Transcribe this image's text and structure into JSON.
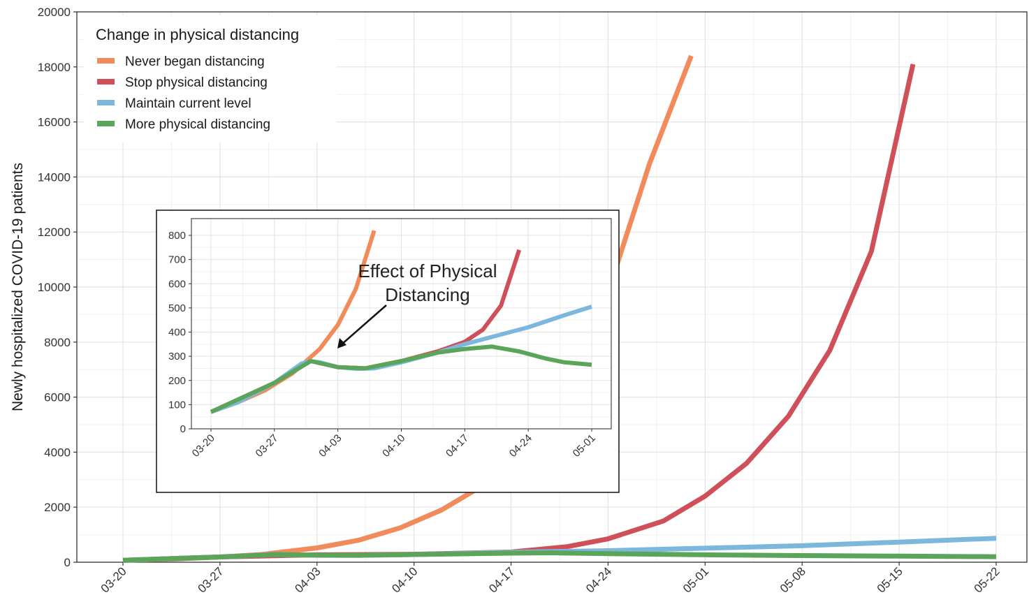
{
  "chart_data": [
    {
      "type": "line",
      "title": "",
      "xlabel": "",
      "ylabel": "Newly hospitalized COVID-19 patients",
      "x_ticks": [
        "03-20",
        "03-27",
        "04-03",
        "04-10",
        "04-17",
        "04-24",
        "05-01",
        "05-08",
        "05-15",
        "05-22"
      ],
      "y_ticks": [
        "0",
        "2000",
        "4000",
        "6000",
        "8000",
        "10000",
        "12000",
        "14000",
        "16000",
        "18000",
        "20000"
      ],
      "ylim": [
        0,
        20000
      ],
      "grid": true,
      "legend": {
        "title": "Change in physical distancing",
        "placement": "top-left"
      },
      "series": [
        {
          "name": "Never began distancing",
          "color": "#F28B5B",
          "points": [
            [
              "03-20",
              70
            ],
            [
              "03-24",
              120
            ],
            [
              "03-27",
              190
            ],
            [
              "03-30",
              280
            ],
            [
              "04-03",
              520
            ],
            [
              "04-06",
              800
            ],
            [
              "04-09",
              1250
            ],
            [
              "04-12",
              1900
            ],
            [
              "04-15",
              2800
            ],
            [
              "04-18",
              4200
            ],
            [
              "04-21",
              6500
            ],
            [
              "04-24",
              9800
            ],
            [
              "04-27",
              14500
            ],
            [
              "04-30",
              18400
            ]
          ]
        },
        {
          "name": "Stop physical distancing",
          "color": "#D0505A",
          "points": [
            [
              "03-20",
              70
            ],
            [
              "03-27",
              190
            ],
            [
              "04-03",
              270
            ],
            [
              "04-10",
              290
            ],
            [
              "04-17",
              370
            ],
            [
              "04-21",
              560
            ],
            [
              "04-24",
              850
            ],
            [
              "04-28",
              1500
            ],
            [
              "05-01",
              2400
            ],
            [
              "05-04",
              3600
            ],
            [
              "05-07",
              5300
            ],
            [
              "05-10",
              7700
            ],
            [
              "05-13",
              11300
            ],
            [
              "05-16",
              18100
            ]
          ]
        },
        {
          "name": "Maintain current level",
          "color": "#7CB8DE",
          "points": [
            [
              "03-20",
              70
            ],
            [
              "03-27",
              190
            ],
            [
              "03-31",
              280
            ],
            [
              "04-03",
              255
            ],
            [
              "04-06",
              250
            ],
            [
              "04-10",
              280
            ],
            [
              "04-17",
              360
            ],
            [
              "04-24",
              420
            ],
            [
              "05-01",
              510
            ],
            [
              "05-08",
              600
            ],
            [
              "05-15",
              730
            ],
            [
              "05-22",
              870
            ]
          ]
        },
        {
          "name": "More physical distancing",
          "color": "#5BA55B",
          "points": [
            [
              "03-20",
              70
            ],
            [
              "03-27",
              190
            ],
            [
              "03-31",
              280
            ],
            [
              "04-03",
              255
            ],
            [
              "04-06",
              250
            ],
            [
              "04-10",
              280
            ],
            [
              "04-17",
              330
            ],
            [
              "04-20",
              340
            ],
            [
              "04-24",
              310
            ],
            [
              "05-01",
              270
            ],
            [
              "05-08",
              240
            ],
            [
              "05-15",
              220
            ],
            [
              "05-22",
              200
            ]
          ]
        }
      ]
    },
    {
      "type": "line",
      "title": "",
      "xlabel": "",
      "ylabel": "",
      "x_ticks": [
        "03-20",
        "03-27",
        "04-03",
        "04-10",
        "04-17",
        "04-24",
        "05-01"
      ],
      "y_ticks": [
        "0",
        "100",
        "200",
        "300",
        "400",
        "500",
        "600",
        "700",
        "800"
      ],
      "ylim": [
        0,
        800
      ],
      "grid": true,
      "annotation": {
        "text_line1": "Effect of Physical",
        "text_line2": "Distancing"
      },
      "series": [
        {
          "color": "#F28B5B",
          "points": [
            [
              "03-20",
              70
            ],
            [
              "03-23",
              110
            ],
            [
              "03-26",
              160
            ],
            [
              "03-29",
              230
            ],
            [
              "04-01",
              330
            ],
            [
              "04-03",
              430
            ],
            [
              "04-05",
              580
            ],
            [
              "04-07",
              820
            ]
          ]
        },
        {
          "color": "#D0505A",
          "points": [
            [
              "03-20",
              70
            ],
            [
              "03-27",
              190
            ],
            [
              "03-31",
              280
            ],
            [
              "04-03",
              255
            ],
            [
              "04-06",
              250
            ],
            [
              "04-10",
              280
            ],
            [
              "04-14",
              320
            ],
            [
              "04-17",
              360
            ],
            [
              "04-19",
              410
            ],
            [
              "04-21",
              510
            ],
            [
              "04-23",
              740
            ]
          ]
        },
        {
          "color": "#7CB8DE",
          "points": [
            [
              "03-20",
              70
            ],
            [
              "03-23",
              110
            ],
            [
              "03-27",
              190
            ],
            [
              "03-30",
              270
            ],
            [
              "03-31",
              280
            ],
            [
              "04-01",
              275
            ],
            [
              "04-03",
              255
            ],
            [
              "04-05",
              248
            ],
            [
              "04-07",
              250
            ],
            [
              "04-10",
              275
            ],
            [
              "04-14",
              315
            ],
            [
              "04-17",
              350
            ],
            [
              "04-20",
              380
            ],
            [
              "04-24",
              420
            ],
            [
              "04-28",
              470
            ],
            [
              "05-01",
              505
            ]
          ]
        },
        {
          "color": "#5BA55B",
          "points": [
            [
              "03-20",
              70
            ],
            [
              "03-27",
              190
            ],
            [
              "03-31",
              280
            ],
            [
              "04-03",
              255
            ],
            [
              "04-06",
              250
            ],
            [
              "04-10",
              280
            ],
            [
              "04-14",
              315
            ],
            [
              "04-17",
              330
            ],
            [
              "04-20",
              340
            ],
            [
              "04-23",
              320
            ],
            [
              "04-26",
              290
            ],
            [
              "04-28",
              275
            ],
            [
              "05-01",
              265
            ]
          ]
        }
      ]
    }
  ]
}
